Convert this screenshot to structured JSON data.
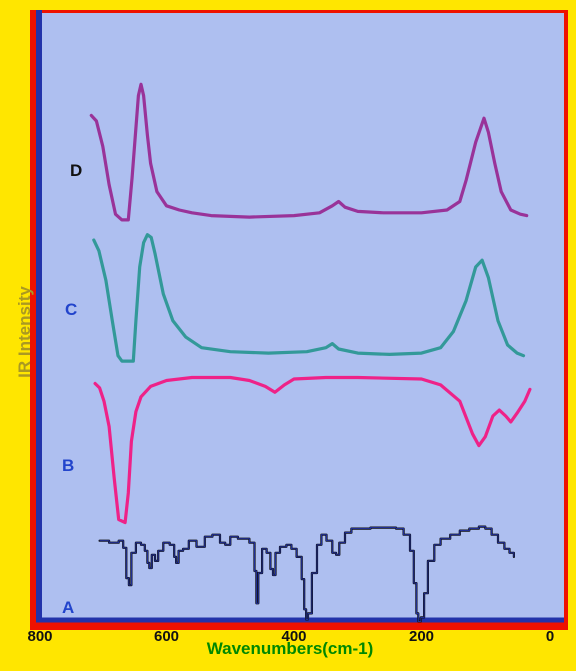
{
  "colors": {
    "background": "#ffe600",
    "plot_area": "#aebff0",
    "frame": "#ee1100",
    "axis": "#2233aa",
    "axis_title": "#aa9922",
    "x_title": "#008800",
    "label_D": "#111111",
    "label_ABC": "#2244cc"
  },
  "chart_data": {
    "type": "line",
    "title": "",
    "xlabel": "Wavenumbers(cm-1)",
    "ylabel": "IR Intensity",
    "xlim": [
      800,
      0
    ],
    "x_reversed": true,
    "xticks": [
      "800",
      "600",
      "400",
      "200",
      "0"
    ],
    "xtick_values": [
      800,
      600,
      400,
      200,
      0
    ],
    "y_ticks_shown": false,
    "grid": false,
    "series": [
      {
        "name": "D",
        "color": "#993399",
        "offset": 4.3,
        "points": [
          [
            718,
            0.74
          ],
          [
            710,
            0.7
          ],
          [
            700,
            0.52
          ],
          [
            690,
            0.25
          ],
          [
            680,
            0.04
          ],
          [
            670,
            0.0
          ],
          [
            660,
            0.0
          ],
          [
            654,
            0.3
          ],
          [
            648,
            0.65
          ],
          [
            644,
            0.88
          ],
          [
            640,
            0.96
          ],
          [
            636,
            0.88
          ],
          [
            630,
            0.6
          ],
          [
            625,
            0.4
          ],
          [
            615,
            0.2
          ],
          [
            600,
            0.1
          ],
          [
            580,
            0.07
          ],
          [
            560,
            0.05
          ],
          [
            530,
            0.03
          ],
          [
            470,
            0.02
          ],
          [
            400,
            0.03
          ],
          [
            360,
            0.05
          ],
          [
            340,
            0.1
          ],
          [
            330,
            0.13
          ],
          [
            320,
            0.09
          ],
          [
            300,
            0.06
          ],
          [
            260,
            0.05
          ],
          [
            200,
            0.05
          ],
          [
            160,
            0.07
          ],
          [
            140,
            0.13
          ],
          [
            130,
            0.28
          ],
          [
            115,
            0.55
          ],
          [
            102,
            0.72
          ],
          [
            95,
            0.62
          ],
          [
            85,
            0.4
          ],
          [
            75,
            0.2
          ],
          [
            60,
            0.07
          ],
          [
            45,
            0.04
          ],
          [
            35,
            0.03
          ]
        ],
        "label": "D"
      },
      {
        "name": "C",
        "color": "#339999",
        "offset": 3.2,
        "points": [
          [
            714,
            0.9
          ],
          [
            706,
            0.82
          ],
          [
            695,
            0.6
          ],
          [
            685,
            0.3
          ],
          [
            676,
            0.04
          ],
          [
            670,
            0.0
          ],
          [
            652,
            0.0
          ],
          [
            648,
            0.3
          ],
          [
            642,
            0.7
          ],
          [
            636,
            0.88
          ],
          [
            630,
            0.94
          ],
          [
            624,
            0.92
          ],
          [
            618,
            0.8
          ],
          [
            605,
            0.5
          ],
          [
            590,
            0.3
          ],
          [
            570,
            0.18
          ],
          [
            545,
            0.1
          ],
          [
            500,
            0.07
          ],
          [
            440,
            0.06
          ],
          [
            380,
            0.07
          ],
          [
            350,
            0.1
          ],
          [
            340,
            0.13
          ],
          [
            330,
            0.09
          ],
          [
            300,
            0.06
          ],
          [
            250,
            0.05
          ],
          [
            200,
            0.06
          ],
          [
            170,
            0.1
          ],
          [
            150,
            0.22
          ],
          [
            130,
            0.45
          ],
          [
            115,
            0.7
          ],
          [
            105,
            0.75
          ],
          [
            95,
            0.62
          ],
          [
            80,
            0.3
          ],
          [
            65,
            0.12
          ],
          [
            50,
            0.06
          ],
          [
            40,
            0.04
          ]
        ],
        "label": "C"
      },
      {
        "name": "B",
        "color": "#ee2288",
        "offset": 2.1,
        "points": [
          [
            712,
            0.94
          ],
          [
            705,
            0.91
          ],
          [
            698,
            0.82
          ],
          [
            690,
            0.65
          ],
          [
            682,
            0.3
          ],
          [
            675,
            0.02
          ],
          [
            665,
            0.0
          ],
          [
            660,
            0.2
          ],
          [
            655,
            0.55
          ],
          [
            648,
            0.75
          ],
          [
            640,
            0.85
          ],
          [
            625,
            0.92
          ],
          [
            600,
            0.96
          ],
          [
            560,
            0.98
          ],
          [
            500,
            0.98
          ],
          [
            470,
            0.96
          ],
          [
            445,
            0.92
          ],
          [
            430,
            0.88
          ],
          [
            415,
            0.93
          ],
          [
            400,
            0.97
          ],
          [
            350,
            0.98
          ],
          [
            300,
            0.98
          ],
          [
            200,
            0.97
          ],
          [
            170,
            0.93
          ],
          [
            140,
            0.82
          ],
          [
            120,
            0.6
          ],
          [
            110,
            0.52
          ],
          [
            100,
            0.58
          ],
          [
            88,
            0.72
          ],
          [
            78,
            0.76
          ],
          [
            68,
            0.72
          ],
          [
            60,
            0.68
          ],
          [
            50,
            0.74
          ],
          [
            38,
            0.82
          ],
          [
            30,
            0.9
          ]
        ],
        "label": "B"
      },
      {
        "name": "A",
        "color": "#111111",
        "offset": 1.0,
        "points": [
          [
            705,
            0.82
          ],
          [
            690,
            0.8
          ],
          [
            675,
            0.82
          ],
          [
            668,
            0.75
          ],
          [
            663,
            0.45
          ],
          [
            659,
            0.38
          ],
          [
            655,
            0.7
          ],
          [
            648,
            0.8
          ],
          [
            640,
            0.78
          ],
          [
            634,
            0.72
          ],
          [
            630,
            0.6
          ],
          [
            627,
            0.55
          ],
          [
            623,
            0.68
          ],
          [
            618,
            0.62
          ],
          [
            613,
            0.72
          ],
          [
            605,
            0.8
          ],
          [
            595,
            0.78
          ],
          [
            588,
            0.66
          ],
          [
            585,
            0.6
          ],
          [
            581,
            0.72
          ],
          [
            574,
            0.74
          ],
          [
            565,
            0.82
          ],
          [
            553,
            0.76
          ],
          [
            540,
            0.86
          ],
          [
            528,
            0.88
          ],
          [
            516,
            0.8
          ],
          [
            508,
            0.78
          ],
          [
            500,
            0.86
          ],
          [
            488,
            0.84
          ],
          [
            470,
            0.8
          ],
          [
            462,
            0.52
          ],
          [
            459,
            0.2
          ],
          [
            456,
            0.5
          ],
          [
            450,
            0.74
          ],
          [
            443,
            0.7
          ],
          [
            437,
            0.54
          ],
          [
            433,
            0.48
          ],
          [
            429,
            0.7
          ],
          [
            422,
            0.76
          ],
          [
            412,
            0.78
          ],
          [
            404,
            0.74
          ],
          [
            396,
            0.66
          ],
          [
            388,
            0.44
          ],
          [
            384,
            0.14
          ],
          [
            381,
            0.04
          ],
          [
            378,
            0.1
          ],
          [
            372,
            0.5
          ],
          [
            364,
            0.78
          ],
          [
            357,
            0.88
          ],
          [
            349,
            0.82
          ],
          [
            340,
            0.7
          ],
          [
            334,
            0.68
          ],
          [
            329,
            0.8
          ],
          [
            320,
            0.9
          ],
          [
            310,
            0.94
          ],
          [
            280,
            0.95
          ],
          [
            250,
            0.95
          ],
          [
            240,
            0.94
          ],
          [
            228,
            0.88
          ],
          [
            218,
            0.72
          ],
          [
            212,
            0.4
          ],
          [
            208,
            0.1
          ],
          [
            205,
            0.02
          ],
          [
            201,
            0.06
          ],
          [
            196,
            0.3
          ],
          [
            190,
            0.62
          ],
          [
            180,
            0.78
          ],
          [
            170,
            0.84
          ],
          [
            155,
            0.88
          ],
          [
            140,
            0.92
          ],
          [
            125,
            0.94
          ],
          [
            110,
            0.96
          ],
          [
            100,
            0.94
          ],
          [
            90,
            0.88
          ],
          [
            80,
            0.8
          ],
          [
            70,
            0.74
          ],
          [
            62,
            0.7
          ],
          [
            55,
            0.66
          ]
        ],
        "label": "A"
      }
    ],
    "series_labels": [
      "D",
      "C",
      "B",
      "A"
    ]
  }
}
